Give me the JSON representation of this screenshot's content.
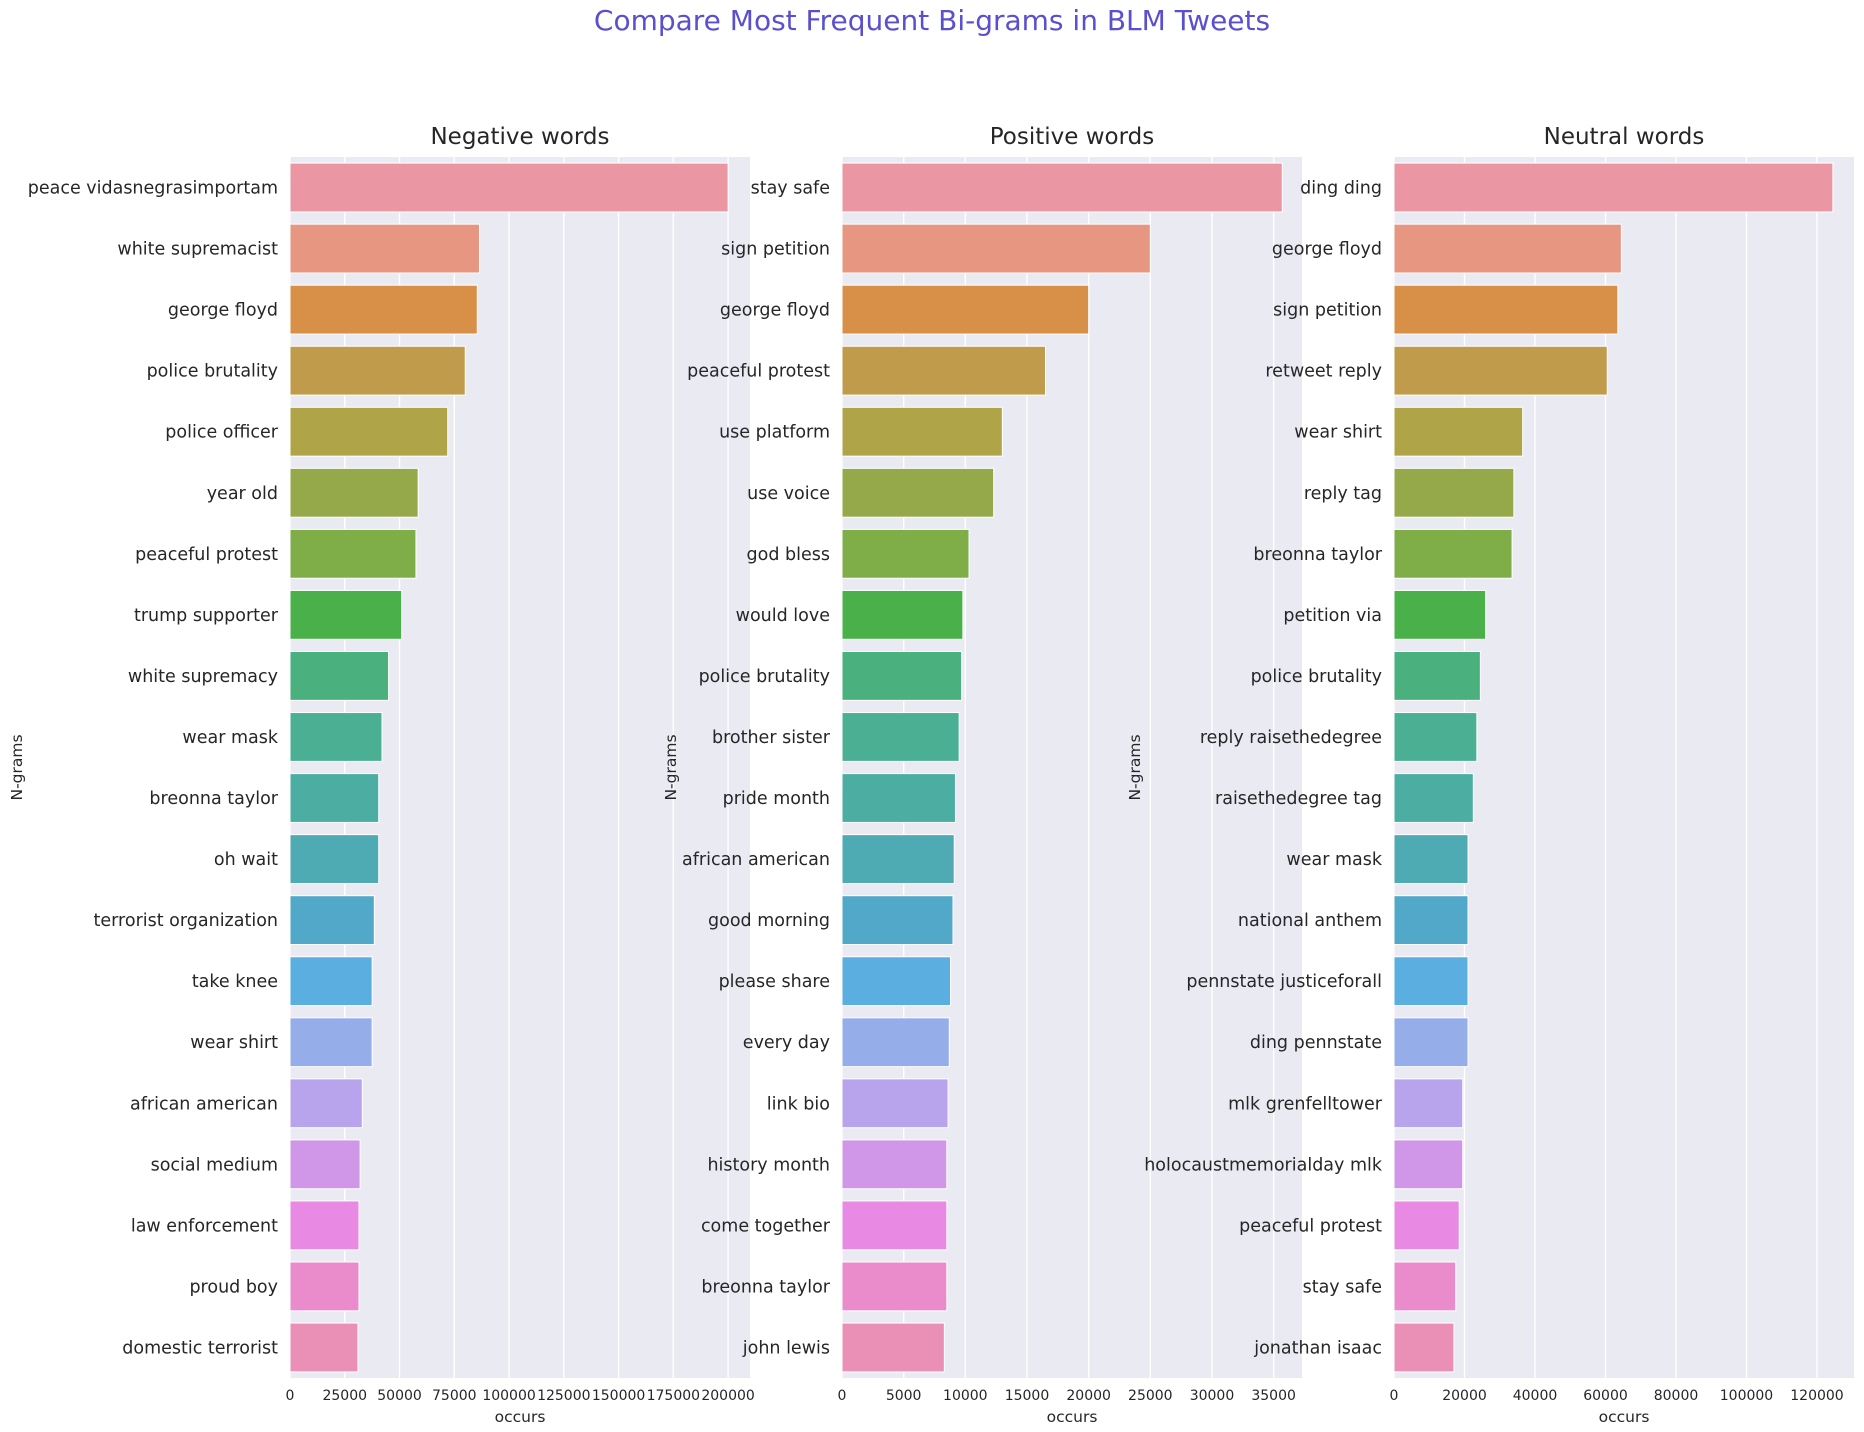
{
  "chart_data": {
    "type": "bar",
    "title": "Compare Most Frequent Bi-grams in BLM Tweets",
    "title_color": "#5a4fcf",
    "background": "#eaeaf2",
    "palette": [
      "#ea96a3",
      "#e69681",
      "#d89049",
      "#c09b4b",
      "#b0a449",
      "#96a94a",
      "#7fae48",
      "#49b04a",
      "#49b07e",
      "#4bb093",
      "#4caea3",
      "#4eaab3",
      "#52a8c8",
      "#5aaee0",
      "#95aeea",
      "#b8a4ed",
      "#d096e7",
      "#e889e4",
      "#ea8ccc",
      "#ea90b6"
    ],
    "charts": [
      {
        "title": "Negative words",
        "xlabel": "occurs",
        "ylabel": "N-grams",
        "orientation": "horizontal",
        "xlim": [
          0,
          210000
        ],
        "xticks": [
          0,
          25000,
          50000,
          75000,
          100000,
          125000,
          150000,
          175000,
          200000
        ],
        "categories": [
          "peace vidasnegrasimportam",
          "white supremacist",
          "george floyd",
          "police brutality",
          "police officer",
          "year old",
          "peaceful protest",
          "trump supporter",
          "white supremacy",
          "wear mask",
          "breonna taylor",
          "oh wait",
          "terrorist organization",
          "take knee",
          "wear shirt",
          "african american",
          "social medium",
          "law enforcement",
          "proud boy",
          "domestic terrorist"
        ],
        "values": [
          200000,
          86500,
          85500,
          80000,
          72000,
          58500,
          57500,
          51000,
          45000,
          42000,
          40500,
          40500,
          38500,
          37500,
          37500,
          33000,
          32000,
          31500,
          31500,
          31000
        ]
      },
      {
        "title": "Positive words",
        "xlabel": "occurs",
        "ylabel": "N-grams",
        "orientation": "horizontal",
        "xlim": [
          0,
          37300
        ],
        "xticks": [
          0,
          5000,
          10000,
          15000,
          20000,
          25000,
          30000,
          35000
        ],
        "categories": [
          "stay safe",
          "sign petition",
          "george floyd",
          "peaceful protest",
          "use platform",
          "use voice",
          "god bless",
          "would love",
          "police brutality",
          "brother sister",
          "pride month",
          "african american",
          "good morning",
          "please share",
          "every day",
          "link bio",
          "history month",
          "come together",
          "breonna taylor",
          "john lewis"
        ],
        "values": [
          35700,
          25000,
          20000,
          16500,
          13000,
          12300,
          10300,
          9800,
          9700,
          9500,
          9200,
          9100,
          9000,
          8800,
          8700,
          8600,
          8500,
          8500,
          8500,
          8300
        ]
      },
      {
        "title": "Neutral words",
        "xlabel": "occurs",
        "ylabel": "N-grams",
        "orientation": "horizontal",
        "xlim": [
          0,
          130500
        ],
        "xticks": [
          0,
          20000,
          40000,
          60000,
          80000,
          100000,
          120000
        ],
        "categories": [
          "ding ding",
          "george floyd",
          "sign petition",
          "retweet reply",
          "wear shirt",
          "reply tag",
          "breonna taylor",
          "petition via",
          "police brutality",
          "reply raisethedegree",
          "raisethedegree tag",
          "wear mask",
          "national anthem",
          "pennstate justiceforall",
          "ding pennstate",
          "mlk grenfelltower",
          "holocaustmemorialday mlk",
          "peaceful protest",
          "stay safe",
          "jonathan isaac"
        ],
        "values": [
          124500,
          64500,
          63500,
          60500,
          36500,
          34000,
          33500,
          26000,
          24500,
          23500,
          22500,
          21000,
          21000,
          21000,
          21000,
          19500,
          19500,
          18500,
          17500,
          17000
        ]
      }
    ]
  }
}
